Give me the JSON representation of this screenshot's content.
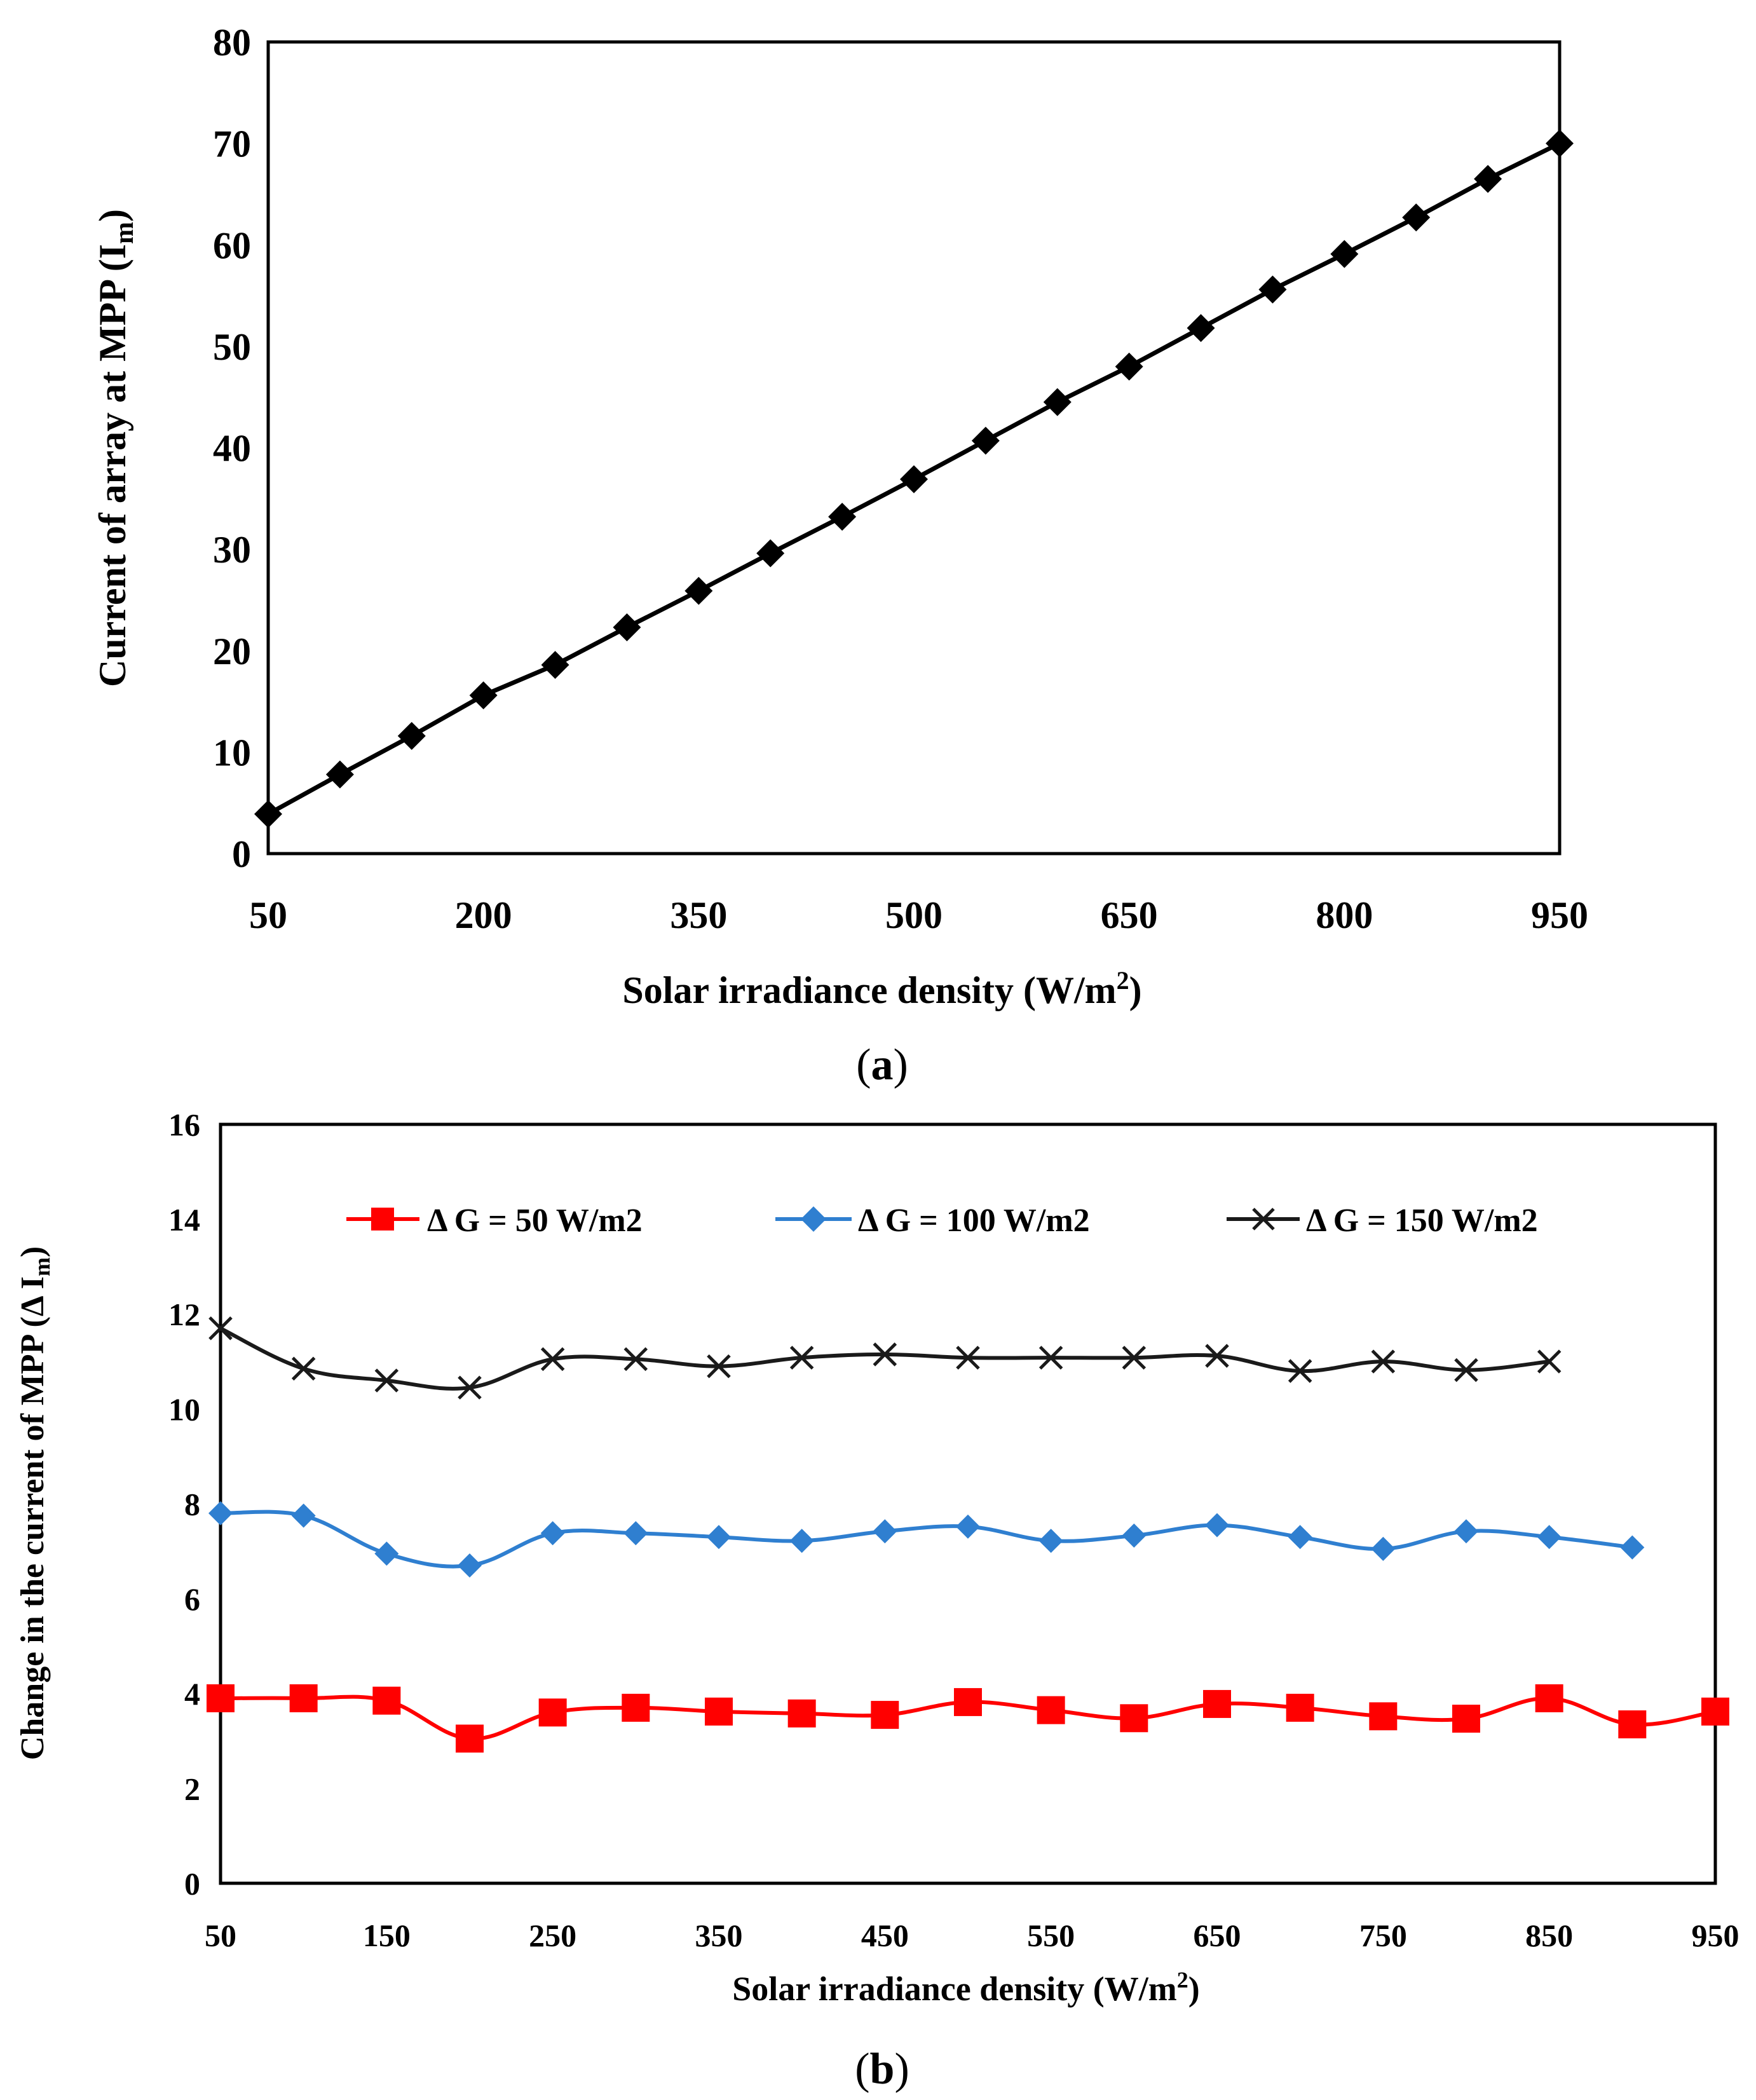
{
  "colors": {
    "axis": "#000000",
    "series_black": "#000000",
    "series_red": "#ff0000",
    "series_blue": "#2f7fd0",
    "series_x": "#1a1a1a"
  },
  "chart_data": [
    {
      "id": "a",
      "type": "line",
      "panel_label": "(a)",
      "panel_letter": "a",
      "xlabel": "Solar irradiance density  (W/m",
      "xlabel_sup": "2",
      "xlabel_end": ")",
      "ylabel": "Current of array at MPP (I",
      "ylabel_sub": "m",
      "ylabel_end": ")",
      "xlim": [
        50,
        950
      ],
      "ylim": [
        0,
        80
      ],
      "xticks": [
        "50",
        "200",
        "350",
        "500",
        "650",
        "800",
        "950"
      ],
      "xtick_values": [
        50,
        200,
        350,
        500,
        650,
        800,
        950
      ],
      "yticks": [
        "0",
        "10",
        "20",
        "30",
        "40",
        "50",
        "60",
        "70",
        "80"
      ],
      "ytick_values": [
        0,
        10,
        20,
        30,
        40,
        50,
        60,
        70,
        80
      ],
      "series": [
        {
          "name": "Im",
          "marker": "diamond",
          "x": [
            50,
            100,
            150,
            200,
            250,
            300,
            350,
            400,
            450,
            500,
            550,
            600,
            650,
            700,
            750,
            800,
            850,
            900,
            950
          ],
          "values": [
            3.9,
            7.8,
            11.6,
            15.6,
            18.6,
            22.3,
            25.9,
            29.6,
            33.2,
            36.9,
            40.7,
            44.5,
            48.0,
            51.8,
            55.6,
            59.1,
            62.7,
            66.5,
            70.0
          ]
        }
      ]
    },
    {
      "id": "b",
      "type": "line",
      "panel_label": "(b)",
      "panel_letter": "b",
      "xlabel": "Solar irradiance density (W/m",
      "xlabel_sup": "2",
      "xlabel_end": ")",
      "ylabel": "Change in the current of MPP (Δ I",
      "ylabel_sub": "m",
      "ylabel_end": ")",
      "xlim": [
        50,
        950
      ],
      "ylim": [
        0,
        16
      ],
      "xticks": [
        "50",
        "150",
        "250",
        "350",
        "450",
        "550",
        "650",
        "750",
        "850",
        "950"
      ],
      "xtick_values": [
        50,
        150,
        250,
        350,
        450,
        550,
        650,
        750,
        850,
        950
      ],
      "yticks": [
        "0",
        "2",
        "4",
        "6",
        "8",
        "10",
        "12",
        "14",
        "16"
      ],
      "ytick_values": [
        0,
        2,
        4,
        6,
        8,
        10,
        12,
        14,
        16
      ],
      "legend_position": "top-center",
      "series": [
        {
          "name": "Δ G = 50 W/m2",
          "color_key": "series_red",
          "marker": "square",
          "x": [
            50,
            100,
            150,
            200,
            250,
            300,
            350,
            400,
            450,
            500,
            550,
            600,
            650,
            700,
            750,
            800,
            850,
            900,
            950
          ],
          "values": [
            3.9,
            3.9,
            3.85,
            3.05,
            3.6,
            3.7,
            3.62,
            3.58,
            3.55,
            3.82,
            3.65,
            3.48,
            3.78,
            3.7,
            3.52,
            3.47,
            3.9,
            3.35,
            3.62
          ]
        },
        {
          "name": "Δ G = 100 W/m2",
          "color_key": "series_blue",
          "marker": "diamond",
          "x": [
            50,
            100,
            150,
            200,
            250,
            300,
            350,
            400,
            450,
            500,
            550,
            600,
            650,
            700,
            750,
            800,
            850,
            900
          ],
          "values": [
            7.8,
            7.75,
            6.95,
            6.7,
            7.38,
            7.38,
            7.3,
            7.22,
            7.42,
            7.52,
            7.22,
            7.33,
            7.55,
            7.3,
            7.05,
            7.42,
            7.3,
            7.08
          ]
        },
        {
          "name": "Δ G = 150 W/m2",
          "color_key": "series_x",
          "marker": "x",
          "x": [
            50,
            100,
            150,
            200,
            250,
            300,
            350,
            400,
            450,
            500,
            550,
            600,
            650,
            700,
            750,
            800,
            850
          ],
          "values": [
            11.7,
            10.85,
            10.6,
            10.45,
            11.05,
            11.05,
            10.9,
            11.08,
            11.15,
            11.08,
            11.08,
            11.08,
            11.12,
            10.8,
            11.0,
            10.82,
            11.0
          ]
        }
      ]
    }
  ]
}
